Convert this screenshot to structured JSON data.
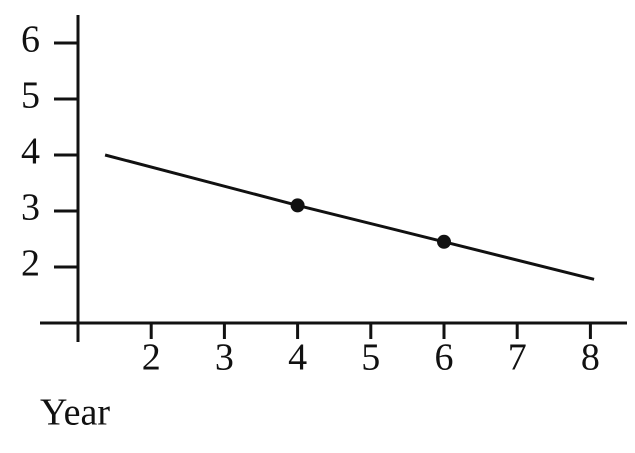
{
  "chart_data": {
    "type": "line",
    "xlabel": "Year",
    "x": [
      1.37,
      4,
      6,
      8.05
    ],
    "values": [
      4,
      3.1,
      2.45,
      1.78
    ],
    "markers": {
      "x": [
        4,
        6
      ],
      "values": [
        3.1,
        2.45
      ]
    },
    "color": "#111111",
    "xlim": [
      1,
      8.5
    ],
    "ylim": [
      1,
      6.5
    ],
    "xticks": [
      2,
      3,
      4,
      5,
      6,
      7,
      8
    ],
    "yticks": [
      2,
      3,
      4,
      5,
      6
    ]
  }
}
